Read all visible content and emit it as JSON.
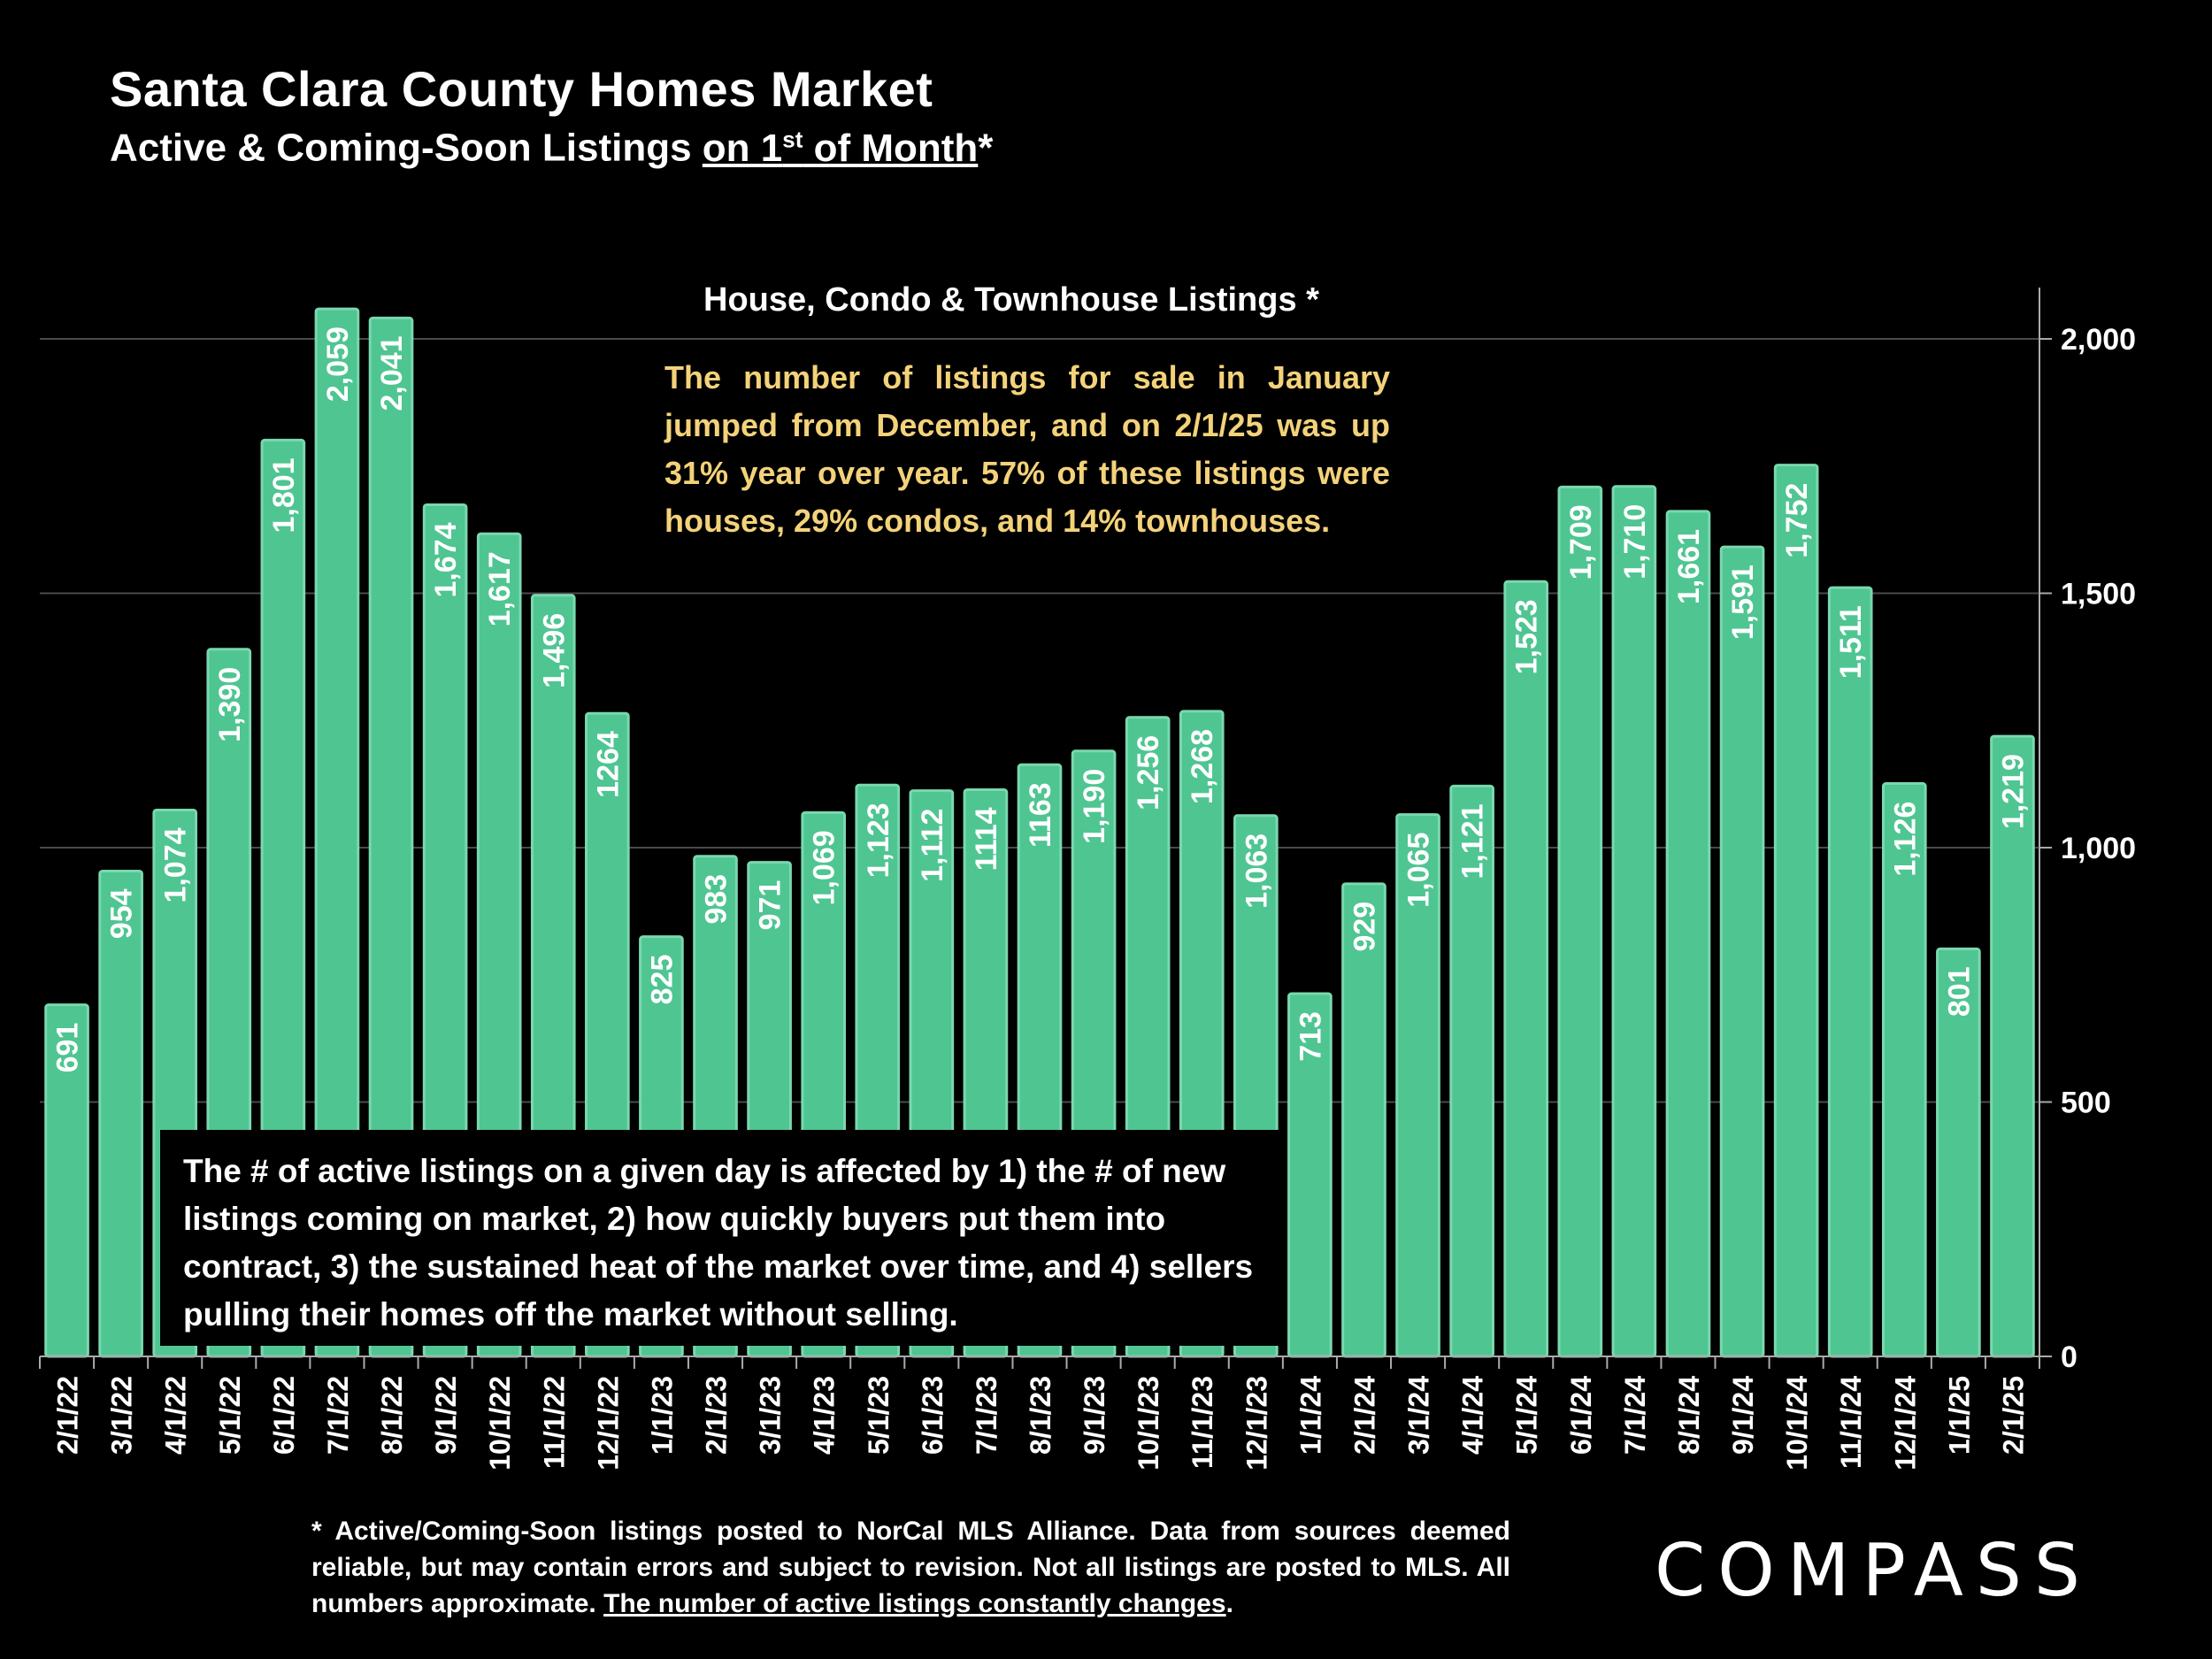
{
  "header": {
    "title": "Santa Clara County Homes Market",
    "subtitle_pre": "Active & Coming-Soon Listings ",
    "subtitle_u1": "on 1",
    "subtitle_sup": "st",
    "subtitle_u2": " of Month",
    "subtitle_post": "*"
  },
  "annotations": {
    "top": "The number of listings for sale in January jumped from December, and on 2/1/25 was up 31% year over year. 57% of these listings were houses, 29% condos, and 14% townhouses.",
    "bottom": "The # of active listings on a given day is affected by 1) the # of new listings coming on market, 2) how quickly buyers put them into contract, 3) the sustained heat of the market over time, and 4) sellers pulling their homes off the market without selling."
  },
  "footnote": {
    "text": "* Active/Coming-Soon listings posted to NorCal MLS Alliance.  Data from sources deemed reliable, but may contain errors and subject to revision.  Not all listings are posted to MLS. All numbers approximate. ",
    "underlined": "The number of active listings constantly changes",
    "end": "."
  },
  "logo": "COMPASS",
  "colors": {
    "bar": "#4fc592",
    "bar_edge": "#7ad8ae",
    "background": "#000000",
    "note": "#f3d27a",
    "grid": "#4a4a4a"
  },
  "chart_data": {
    "type": "bar",
    "title": "House, Condo & Townhouse Listings *",
    "categories": [
      "2/1/22",
      "3/1/22",
      "4/1/22",
      "5/1/22",
      "6/1/22",
      "7/1/22",
      "8/1/22",
      "9/1/22",
      "10/1/22",
      "11/1/22",
      "12/1/22",
      "1/1/23",
      "2/1/23",
      "3/1/23",
      "4/1/23",
      "5/1/23",
      "6/1/23",
      "7/1/23",
      "8/1/23",
      "9/1/23",
      "10/1/23",
      "11/1/23",
      "12/1/23",
      "1/1/24",
      "2/1/24",
      "3/1/24",
      "4/1/24",
      "5/1/24",
      "6/1/24",
      "7/1/24",
      "8/1/24",
      "9/1/24",
      "10/1/24",
      "11/1/24",
      "12/1/24",
      "1/1/25",
      "2/1/25"
    ],
    "values": [
      691,
      954,
      1074,
      1390,
      1801,
      2059,
      2041,
      1674,
      1617,
      1496,
      1264,
      825,
      983,
      971,
      1069,
      1123,
      1112,
      1114,
      1163,
      1190,
      1256,
      1268,
      1063,
      713,
      929,
      1065,
      1121,
      1523,
      1709,
      1710,
      1661,
      1591,
      1752,
      1511,
      1126,
      801,
      1219
    ],
    "labels": [
      "691",
      "954",
      "1,074",
      "1,390",
      "1,801",
      "2,059",
      "2,041",
      "1,674",
      "1,617",
      "1,496",
      "1264",
      "825",
      "983",
      "971",
      "1,069",
      "1,123",
      "1,112",
      "1114",
      "1163",
      "1,190",
      "1,256",
      "1,268",
      "1,063",
      "713",
      "929",
      "1,065",
      "1,121",
      "1,523",
      "1,709",
      "1,710",
      "1,661",
      "1,591",
      "1,752",
      "1,511",
      "1,126",
      "801",
      "1,219"
    ],
    "ylim": [
      0,
      2000
    ],
    "yticks": [
      0,
      500,
      1000,
      1500,
      2000
    ],
    "ytick_labels": [
      "0",
      "500",
      "1,000",
      "1,500",
      "2,000"
    ],
    "axis_side": "right",
    "grid": true,
    "xlabel": "",
    "ylabel": ""
  }
}
